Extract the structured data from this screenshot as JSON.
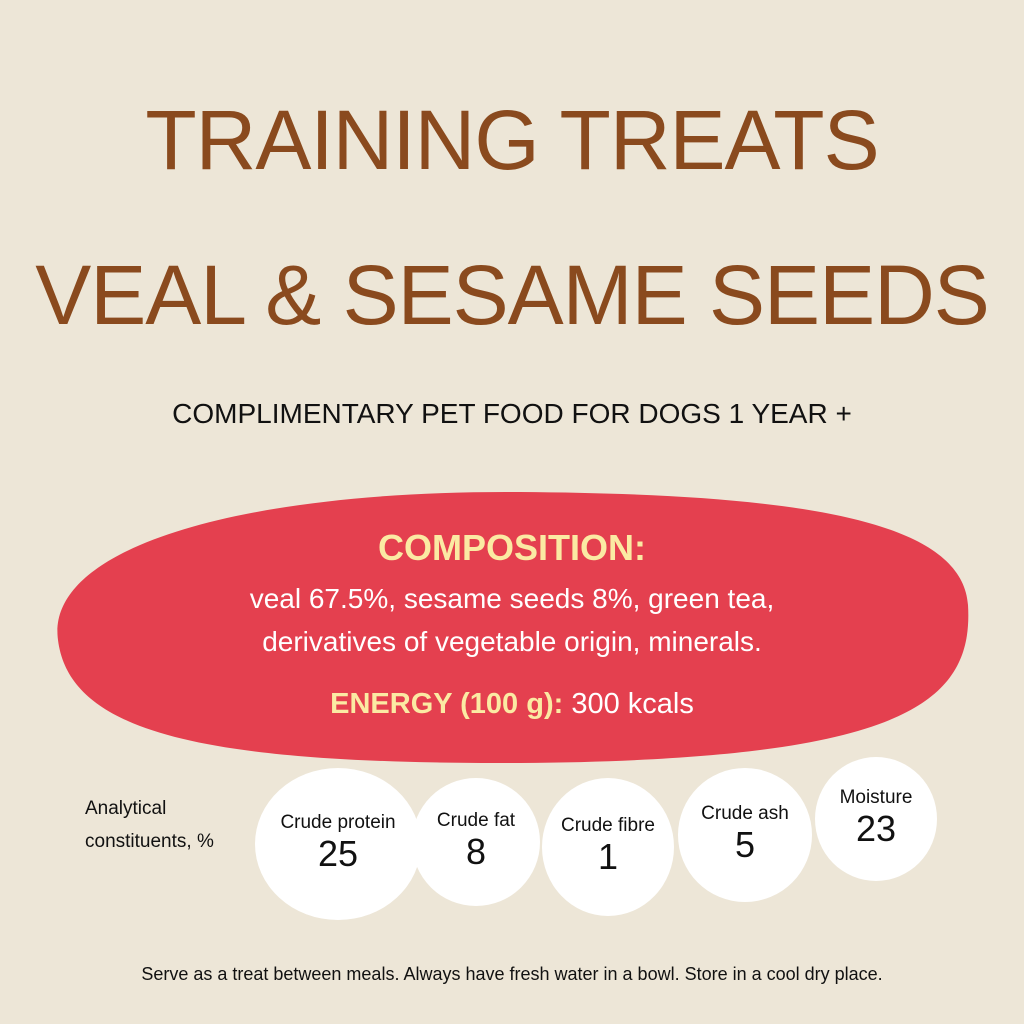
{
  "title": {
    "line1": "TRAINING TREATS",
    "line2": "VEAL & SESAME SEEDS"
  },
  "subtitle": "COMPLIMENTARY PET FOOD FOR DOGS 1 YEAR +",
  "composition": {
    "heading": "COMPOSITION:",
    "line1": "veal 67.5%, sesame seeds 8%, green tea,",
    "line2": "derivatives of vegetable origin, minerals.",
    "energy_label": "ENERGY (100 g):",
    "energy_value": "300 kcals"
  },
  "analytical": {
    "label_line1": "Analytical",
    "label_line2": "constituents, %",
    "items": [
      {
        "name": "Crude protein",
        "value": "25"
      },
      {
        "name": "Crude fat",
        "value": "8"
      },
      {
        "name": "Crude fibre",
        "value": "1"
      },
      {
        "name": "Crude ash",
        "value": "5"
      },
      {
        "name": "Moisture",
        "value": "23"
      }
    ]
  },
  "footer": "Serve as a treat between meals. Always have fresh water in a bowl. Store in a cool dry place.",
  "colors": {
    "background": "#ede6d7",
    "title": "#8a4a1e",
    "blob": "#e4404f",
    "accent": "#fbeaa3"
  }
}
